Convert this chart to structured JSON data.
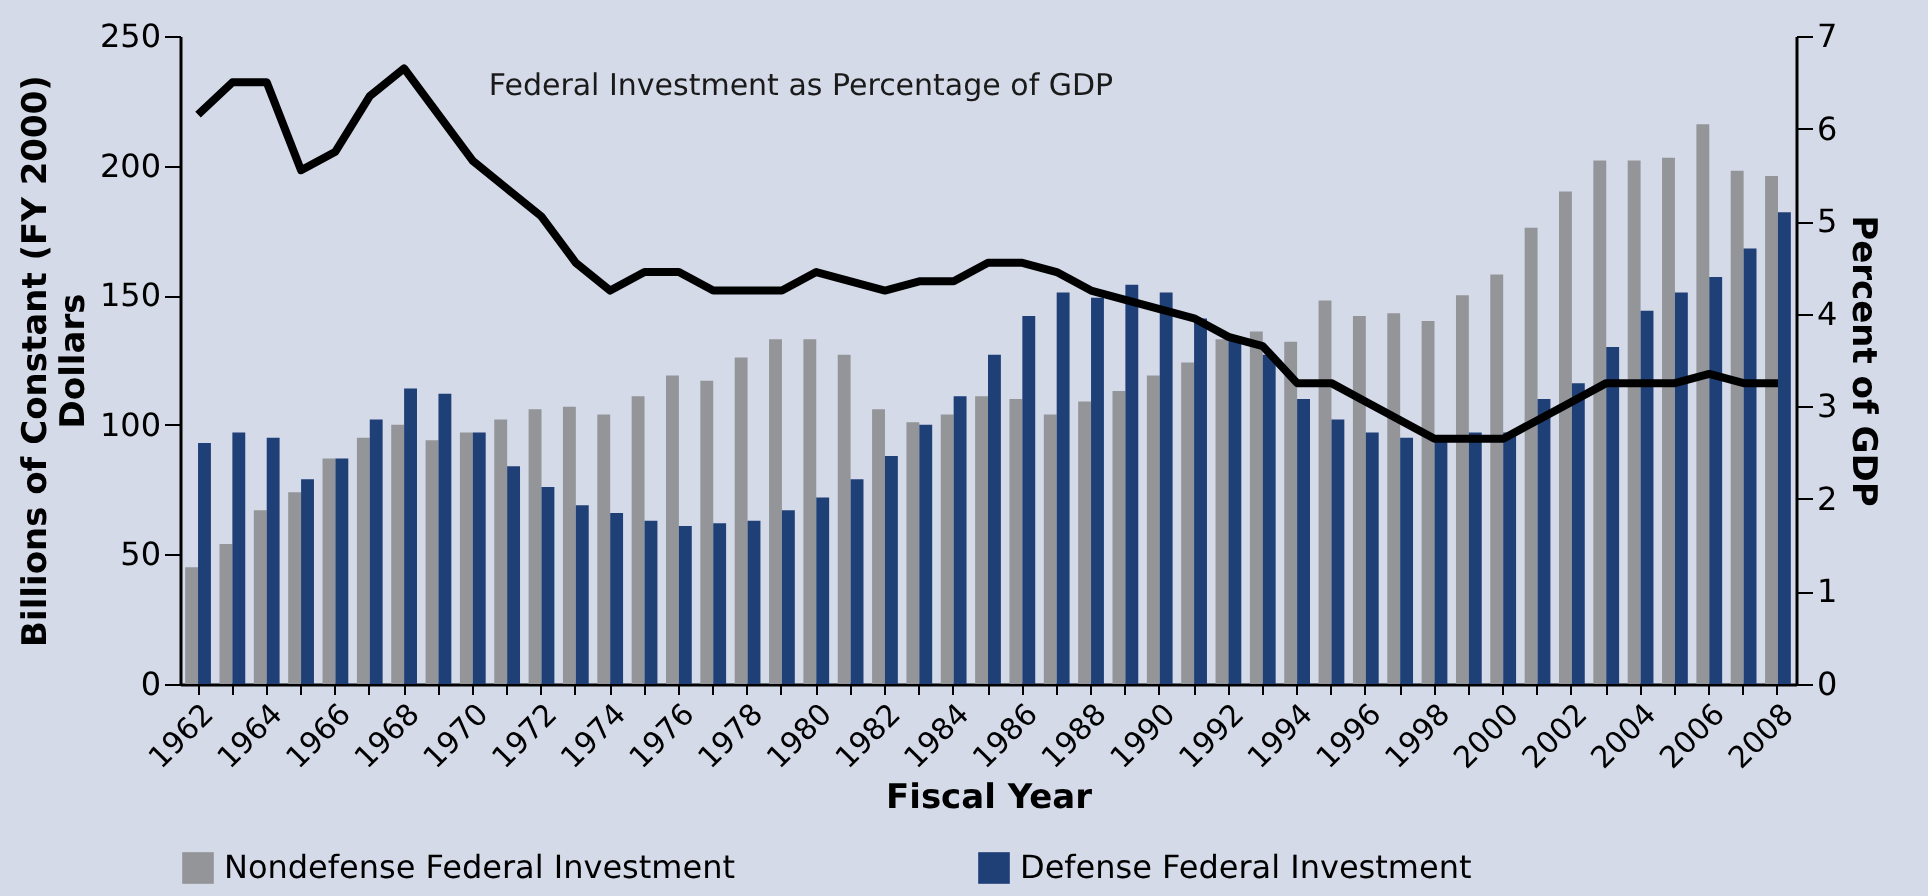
{
  "chart_data": {
    "type": "bar",
    "xlabel": "Fiscal Year",
    "ylabel": "Billions of Constant (FY 2000) Dollars",
    "y2label": "Percent of GDP",
    "categories": [
      "1962",
      null,
      "1964",
      null,
      "1966",
      null,
      "1968",
      null,
      "1970",
      null,
      "1972",
      null,
      "1974",
      null,
      "1976",
      null,
      "1978",
      null,
      "1980",
      null,
      "1982",
      null,
      "1984",
      null,
      "1986",
      null,
      "1988",
      null,
      "1990",
      null,
      "1992",
      null,
      "1994",
      null,
      "1996",
      null,
      "1998",
      null,
      "2000",
      null,
      "2002",
      null,
      "2004",
      null,
      "2006",
      null,
      "2008"
    ],
    "series": [
      {
        "name": "Nondefense Federal Investment",
        "color": "#939598",
        "values": [
          45,
          54,
          67,
          74,
          87,
          95,
          100,
          94,
          97,
          102,
          106,
          107,
          104,
          111,
          119,
          117,
          126,
          133,
          133,
          127,
          106,
          101,
          104,
          111,
          110,
          104,
          109,
          113,
          119,
          124,
          133,
          136,
          132,
          148,
          142,
          143,
          140,
          150,
          158,
          176,
          190,
          202,
          202,
          203,
          216,
          198,
          196
        ]
      },
      {
        "name": "Defense Federal Investment",
        "color": "#1f3f77",
        "values": [
          93,
          97,
          95,
          79,
          87,
          102,
          114,
          112,
          97,
          84,
          76,
          69,
          66,
          63,
          61,
          62,
          63,
          67,
          72,
          79,
          88,
          100,
          111,
          127,
          142,
          151,
          149,
          154,
          151,
          141,
          133,
          127,
          110,
          102,
          97,
          95,
          96,
          97,
          97,
          110,
          116,
          130,
          144,
          151,
          157,
          168,
          182
        ]
      },
      {
        "name": "Federal Investment as Percentage of GDP",
        "type": "line",
        "axis": "y2",
        "color": "#000000",
        "values": [
          6.15,
          6.5,
          6.5,
          5.55,
          5.75,
          6.35,
          6.65,
          6.15,
          5.65,
          5.35,
          5.05,
          4.55,
          4.25,
          4.45,
          4.45,
          4.25,
          4.25,
          4.25,
          4.45,
          4.35,
          4.25,
          4.35,
          4.35,
          4.55,
          4.55,
          4.45,
          4.25,
          4.15,
          4.05,
          3.95,
          3.75,
          3.65,
          3.25,
          3.25,
          3.05,
          2.85,
          2.65,
          2.65,
          2.65,
          2.85,
          3.05,
          3.25,
          3.25,
          3.25,
          3.35,
          3.25,
          3.25
        ]
      }
    ],
    "ylim": [
      0,
      250
    ],
    "yticks": [
      0,
      50,
      100,
      150,
      200,
      250
    ],
    "y2lim": [
      0,
      7
    ],
    "y2ticks": [
      0,
      1,
      2,
      3,
      4,
      5,
      6,
      7
    ],
    "grid": false,
    "legend": "bottom",
    "marker": "none",
    "line_style": "solid"
  }
}
